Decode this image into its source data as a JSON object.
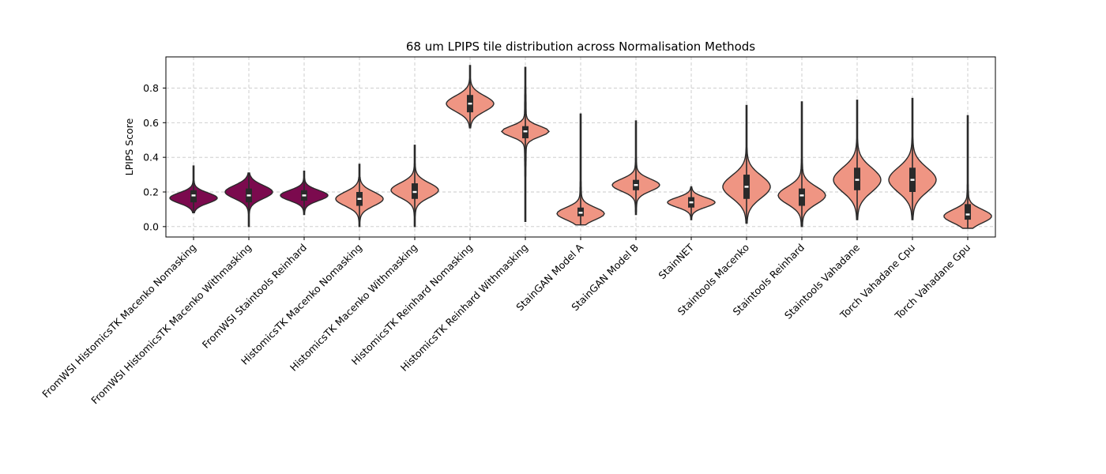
{
  "chart_data": {
    "type": "violin",
    "title": "68 um LPIPS tile distribution across Normalisation Methods",
    "xlabel": "",
    "ylabel": "LPIPS Score",
    "ylim": [
      -0.06,
      0.98
    ],
    "yticks": [
      0.0,
      0.2,
      0.4,
      0.6,
      0.8
    ],
    "ytick_labels": [
      "0.0",
      "0.2",
      "0.4",
      "0.6",
      "0.8"
    ],
    "grid": true,
    "colors": {
      "highlight": "#7b0a4e",
      "default": "#ef9583"
    },
    "categories": [
      {
        "label": "FromWSI HistomicsTK Macenko Nomasking",
        "color": "highlight",
        "min": 0.08,
        "q1": 0.14,
        "median": 0.18,
        "q3": 0.21,
        "max": 0.35,
        "mode": 0.165,
        "spread": 0.03
      },
      {
        "label": "FromWSI HistomicsTK Macenko Withmasking",
        "color": "highlight",
        "min": 0.0,
        "q1": 0.14,
        "median": 0.18,
        "q3": 0.22,
        "max": 0.31,
        "mode": 0.2,
        "spread": 0.038
      },
      {
        "label": "FromWSI Staintools Reinhard",
        "color": "highlight",
        "min": 0.07,
        "q1": 0.15,
        "median": 0.18,
        "q3": 0.21,
        "max": 0.32,
        "mode": 0.18,
        "spread": 0.03
      },
      {
        "label": "HistomicsTK Macenko Nomasking",
        "color": "default",
        "min": 0.0,
        "q1": 0.12,
        "median": 0.16,
        "q3": 0.2,
        "max": 0.36,
        "mode": 0.16,
        "spread": 0.04
      },
      {
        "label": "HistomicsTK Macenko Withmasking",
        "color": "default",
        "min": 0.0,
        "q1": 0.16,
        "median": 0.2,
        "q3": 0.25,
        "max": 0.47,
        "mode": 0.21,
        "spread": 0.042
      },
      {
        "label": "HistomicsTK Reinhard Nomasking",
        "color": "default",
        "min": 0.57,
        "q1": 0.66,
        "median": 0.71,
        "q3": 0.76,
        "max": 0.93,
        "mode": 0.71,
        "spread": 0.045
      },
      {
        "label": "HistomicsTK Reinhard Withmasking",
        "color": "default",
        "min": 0.03,
        "q1": 0.51,
        "median": 0.55,
        "q3": 0.58,
        "max": 0.92,
        "mode": 0.55,
        "spread": 0.03
      },
      {
        "label": "StainGAN Model A",
        "color": "default",
        "min": 0.01,
        "q1": 0.06,
        "median": 0.08,
        "q3": 0.11,
        "max": 0.65,
        "mode": 0.075,
        "spread": 0.035
      },
      {
        "label": "StainGAN Model B",
        "color": "default",
        "min": 0.07,
        "q1": 0.21,
        "median": 0.24,
        "q3": 0.27,
        "max": 0.61,
        "mode": 0.24,
        "spread": 0.035
      },
      {
        "label": "StainNET",
        "color": "default",
        "min": 0.04,
        "q1": 0.11,
        "median": 0.14,
        "q3": 0.17,
        "max": 0.23,
        "mode": 0.14,
        "spread": 0.028
      },
      {
        "label": "Staintools Macenko",
        "color": "default",
        "min": 0.02,
        "q1": 0.16,
        "median": 0.23,
        "q3": 0.3,
        "max": 0.7,
        "mode": 0.23,
        "spread": 0.065
      },
      {
        "label": "Staintools Reinhard",
        "color": "default",
        "min": 0.0,
        "q1": 0.12,
        "median": 0.18,
        "q3": 0.22,
        "max": 0.72,
        "mode": 0.18,
        "spread": 0.05
      },
      {
        "label": "Staintools Vahadane",
        "color": "default",
        "min": 0.04,
        "q1": 0.21,
        "median": 0.27,
        "q3": 0.34,
        "max": 0.73,
        "mode": 0.27,
        "spread": 0.07
      },
      {
        "label": "Torch Vahadane Cpu",
        "color": "default",
        "min": 0.04,
        "q1": 0.2,
        "median": 0.27,
        "q3": 0.34,
        "max": 0.74,
        "mode": 0.27,
        "spread": 0.07
      },
      {
        "label": "Torch Vahadane Gpu",
        "color": "default",
        "min": -0.01,
        "q1": 0.04,
        "median": 0.07,
        "q3": 0.13,
        "max": 0.64,
        "mode": 0.06,
        "spread": 0.038
      }
    ]
  }
}
